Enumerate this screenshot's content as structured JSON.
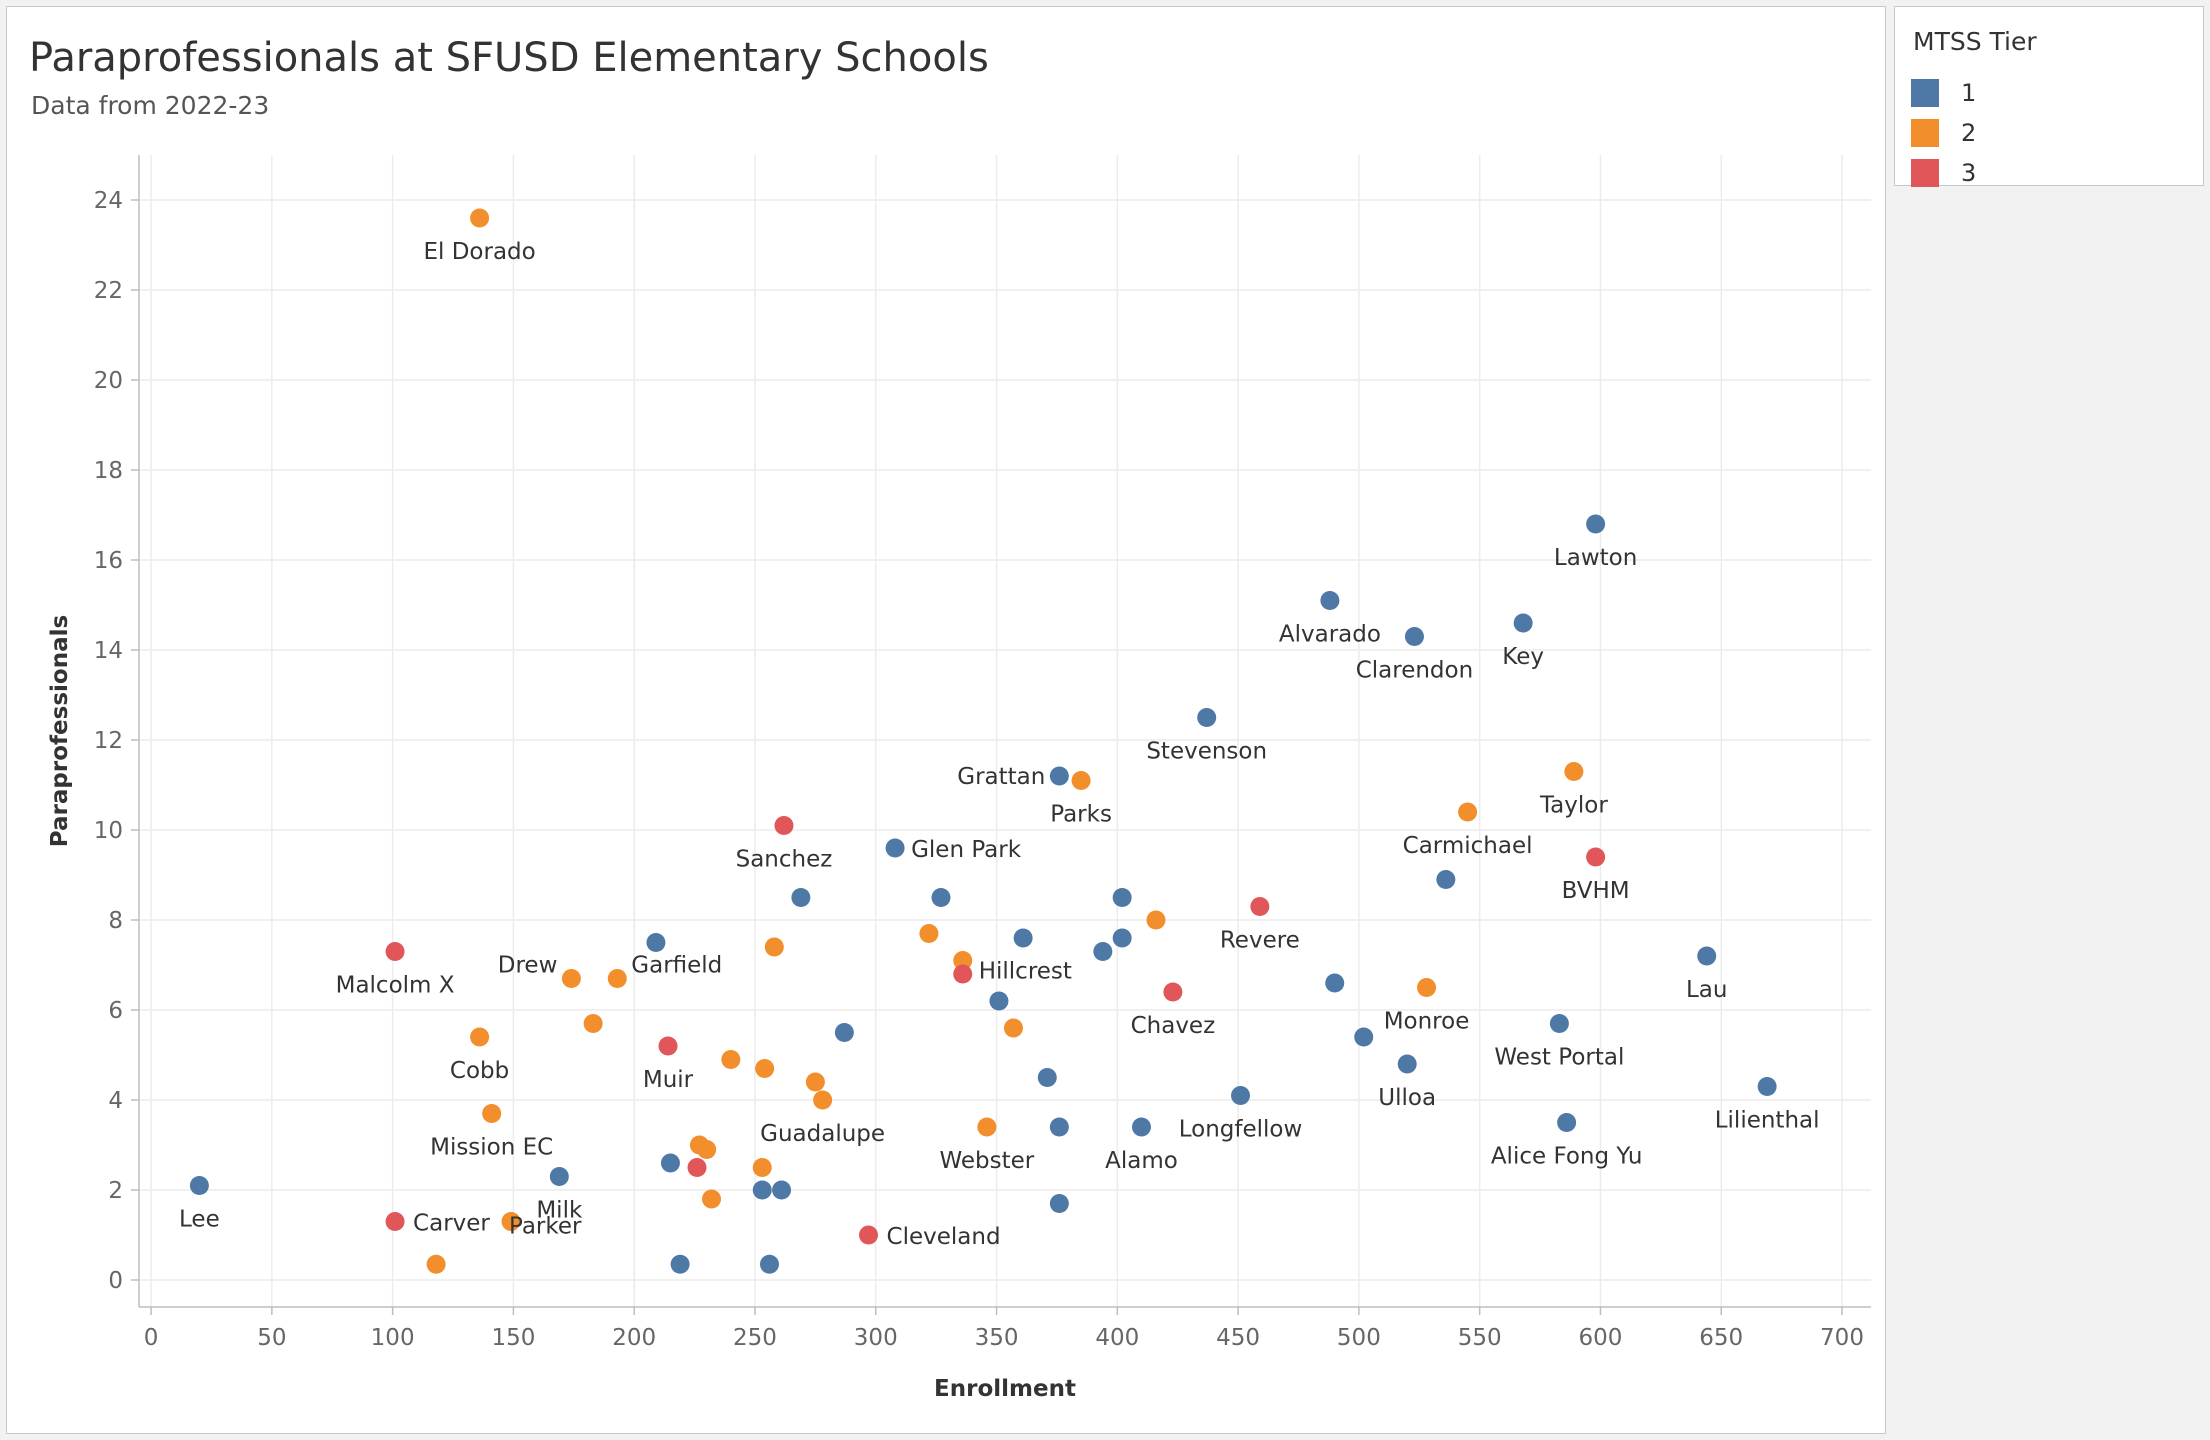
{
  "title": "Paraprofessionals at SFUSD Elementary Schools",
  "subtitle": "Data from 2022-23",
  "legend": {
    "title": "MTSS Tier",
    "items": [
      {
        "label": "1",
        "color": "#4e79a7"
      },
      {
        "label": "2",
        "color": "#f28e2b"
      },
      {
        "label": "3",
        "color": "#e15759"
      }
    ]
  },
  "chart_data": {
    "type": "scatter",
    "xlabel": "Enrollment",
    "ylabel": "Paraprofessionals",
    "xlim": [
      -5,
      712
    ],
    "ylim": [
      -0.6,
      25
    ],
    "xticks": [
      0,
      50,
      100,
      150,
      200,
      250,
      300,
      350,
      400,
      450,
      500,
      550,
      600,
      650,
      700
    ],
    "yticks": [
      0,
      2,
      4,
      6,
      8,
      10,
      12,
      14,
      16,
      18,
      20,
      22,
      24
    ],
    "grid": true,
    "legend_position": "right",
    "series": [
      {
        "name": "1",
        "color": "#4e79a7",
        "points": [
          {
            "x": 20,
            "y": 2.1,
            "label": "Lee"
          },
          {
            "x": 169,
            "y": 2.3,
            "label": "Milk"
          },
          {
            "x": 209,
            "y": 7.5,
            "label": ""
          },
          {
            "x": 215,
            "y": 2.6,
            "label": ""
          },
          {
            "x": 219,
            "y": 0.35,
            "label": ""
          },
          {
            "x": 253,
            "y": 2.0,
            "label": ""
          },
          {
            "x": 256,
            "y": 0.35,
            "label": ""
          },
          {
            "x": 261,
            "y": 2.0,
            "label": ""
          },
          {
            "x": 269,
            "y": 8.5,
            "label": ""
          },
          {
            "x": 287,
            "y": 5.5,
            "label": ""
          },
          {
            "x": 308,
            "y": 9.6,
            "label": "Glen Park"
          },
          {
            "x": 327,
            "y": 8.5,
            "label": ""
          },
          {
            "x": 351,
            "y": 6.2,
            "label": ""
          },
          {
            "x": 361,
            "y": 7.6,
            "label": ""
          },
          {
            "x": 371,
            "y": 4.5,
            "label": ""
          },
          {
            "x": 376,
            "y": 11.2,
            "label": "Grattan"
          },
          {
            "x": 376,
            "y": 3.4,
            "label": ""
          },
          {
            "x": 376,
            "y": 1.7,
            "label": ""
          },
          {
            "x": 394,
            "y": 7.3,
            "label": ""
          },
          {
            "x": 402,
            "y": 8.5,
            "label": ""
          },
          {
            "x": 402,
            "y": 7.6,
            "label": ""
          },
          {
            "x": 410,
            "y": 3.4,
            "label": "Alamo"
          },
          {
            "x": 437,
            "y": 12.5,
            "label": "Stevenson"
          },
          {
            "x": 451,
            "y": 4.1,
            "label": "Longfellow"
          },
          {
            "x": 488,
            "y": 15.1,
            "label": "Alvarado"
          },
          {
            "x": 490,
            "y": 6.6,
            "label": ""
          },
          {
            "x": 502,
            "y": 5.4,
            "label": ""
          },
          {
            "x": 520,
            "y": 4.8,
            "label": "Ulloa"
          },
          {
            "x": 523,
            "y": 14.3,
            "label": "Clarendon"
          },
          {
            "x": 536,
            "y": 8.9,
            "label": ""
          },
          {
            "x": 568,
            "y": 14.6,
            "label": "Key"
          },
          {
            "x": 583,
            "y": 5.7,
            "label": "West Portal"
          },
          {
            "x": 586,
            "y": 3.5,
            "label": "Alice Fong Yu"
          },
          {
            "x": 598,
            "y": 16.8,
            "label": "Lawton"
          },
          {
            "x": 644,
            "y": 7.2,
            "label": "Lau"
          },
          {
            "x": 669,
            "y": 4.3,
            "label": "Lilienthal"
          }
        ]
      },
      {
        "name": "2",
        "color": "#f28e2b",
        "points": [
          {
            "x": 118,
            "y": 0.35,
            "label": ""
          },
          {
            "x": 136,
            "y": 23.6,
            "label": "El Dorado"
          },
          {
            "x": 136,
            "y": 5.4,
            "label": "Cobb"
          },
          {
            "x": 141,
            "y": 3.7,
            "label": "Mission EC"
          },
          {
            "x": 149,
            "y": 1.3,
            "label": "Parker"
          },
          {
            "x": 174,
            "y": 6.7,
            "label": "Drew"
          },
          {
            "x": 183,
            "y": 5.7,
            "label": ""
          },
          {
            "x": 193,
            "y": 6.7,
            "label": "Garfield"
          },
          {
            "x": 227,
            "y": 3.0,
            "label": ""
          },
          {
            "x": 230,
            "y": 2.9,
            "label": ""
          },
          {
            "x": 232,
            "y": 1.8,
            "label": ""
          },
          {
            "x": 240,
            "y": 4.9,
            "label": ""
          },
          {
            "x": 253,
            "y": 2.5,
            "label": ""
          },
          {
            "x": 254,
            "y": 4.7,
            "label": ""
          },
          {
            "x": 258,
            "y": 7.4,
            "label": ""
          },
          {
            "x": 275,
            "y": 4.4,
            "label": ""
          },
          {
            "x": 278,
            "y": 4.0,
            "label": "Guadalupe"
          },
          {
            "x": 322,
            "y": 7.7,
            "label": ""
          },
          {
            "x": 336,
            "y": 7.1,
            "label": "Hillcrest"
          },
          {
            "x": 346,
            "y": 3.4,
            "label": "Webster"
          },
          {
            "x": 357,
            "y": 5.6,
            "label": ""
          },
          {
            "x": 385,
            "y": 11.1,
            "label": "Parks"
          },
          {
            "x": 416,
            "y": 8.0,
            "label": ""
          },
          {
            "x": 528,
            "y": 6.5,
            "label": "Monroe"
          },
          {
            "x": 545,
            "y": 10.4,
            "label": "Carmichael"
          },
          {
            "x": 589,
            "y": 11.3,
            "label": "Taylor"
          }
        ]
      },
      {
        "name": "3",
        "color": "#e15759",
        "points": [
          {
            "x": 101,
            "y": 7.3,
            "label": "Malcolm X"
          },
          {
            "x": 101,
            "y": 1.3,
            "label": "Carver"
          },
          {
            "x": 214,
            "y": 5.2,
            "label": "Muir"
          },
          {
            "x": 226,
            "y": 2.5,
            "label": ""
          },
          {
            "x": 262,
            "y": 10.1,
            "label": "Sanchez"
          },
          {
            "x": 297,
            "y": 1.0,
            "label": "Cleveland"
          },
          {
            "x": 336,
            "y": 6.8,
            "label": ""
          },
          {
            "x": 423,
            "y": 6.4,
            "label": "Chavez"
          },
          {
            "x": 459,
            "y": 8.3,
            "label": "Revere"
          },
          {
            "x": 598,
            "y": 9.4,
            "label": "BVHM"
          }
        ]
      }
    ]
  }
}
